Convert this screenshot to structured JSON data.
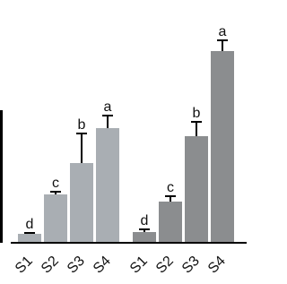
{
  "chart_data": {
    "type": "bar",
    "categories": [
      "S1",
      "S2",
      "S3",
      "S4"
    ],
    "series": [
      {
        "color": "#a9aeb3",
        "values": [
          9,
          53,
          88,
          127
        ],
        "errors": [
          1,
          3,
          33,
          14
        ],
        "letters": [
          "d",
          "c",
          "b",
          "a"
        ]
      },
      {
        "color": "#8b8d8f",
        "values": [
          11,
          45,
          118,
          213
        ],
        "errors": [
          3,
          6,
          16,
          12
        ],
        "letters": [
          "d",
          "c",
          "b",
          "a"
        ]
      }
    ],
    "ylim": [
      0,
      270
    ]
  }
}
